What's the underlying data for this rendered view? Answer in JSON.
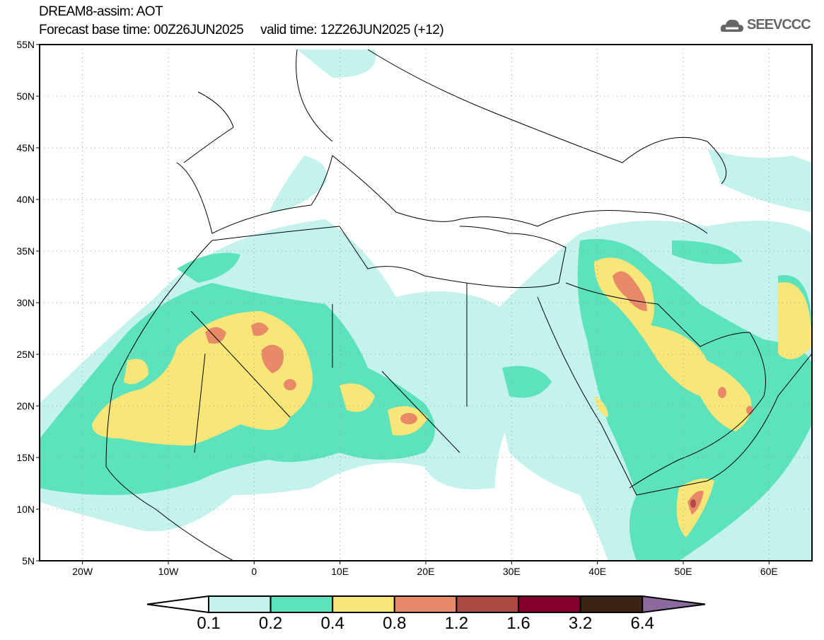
{
  "header": {
    "title": "DREAM8-assim: AOT",
    "subtitle": "Forecast base time: 00Z26JUN2025     valid time: 12Z26JUN2025 (+12)",
    "logo_text": "SEEVCCC"
  },
  "map": {
    "lon_range": [
      -25,
      65
    ],
    "lat_range": [
      5,
      55
    ],
    "lon_ticks": [
      {
        "v": -20,
        "label": "20W"
      },
      {
        "v": -10,
        "label": "10W"
      },
      {
        "v": 0,
        "label": "0"
      },
      {
        "v": 10,
        "label": "10E"
      },
      {
        "v": 20,
        "label": "20E"
      },
      {
        "v": 30,
        "label": "30E"
      },
      {
        "v": 40,
        "label": "40E"
      },
      {
        "v": 50,
        "label": "50E"
      },
      {
        "v": 60,
        "label": "60E"
      }
    ],
    "lat_ticks": [
      {
        "v": 5,
        "label": "5N"
      },
      {
        "v": 10,
        "label": "10N"
      },
      {
        "v": 15,
        "label": "15N"
      },
      {
        "v": 20,
        "label": "20N"
      },
      {
        "v": 25,
        "label": "25N"
      },
      {
        "v": 30,
        "label": "30N"
      },
      {
        "v": 35,
        "label": "35N"
      },
      {
        "v": 40,
        "label": "40N"
      },
      {
        "v": 45,
        "label": "45N"
      },
      {
        "v": 50,
        "label": "50N"
      },
      {
        "v": 55,
        "label": "55N"
      }
    ]
  },
  "colorbar": {
    "labels": [
      "0.1",
      "0.2",
      "0.4",
      "0.8",
      "1.2",
      "1.6",
      "3.2",
      "6.4"
    ],
    "colors": [
      "#ffffff",
      "#c4f2ec",
      "#5de3bc",
      "#f8e678",
      "#e88a68",
      "#ab4b42",
      "#84002c",
      "#3a2514",
      "#8c6aa0"
    ]
  }
}
